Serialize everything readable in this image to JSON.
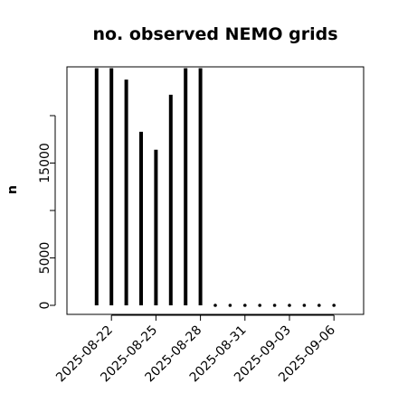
{
  "chart_data": {
    "type": "bar",
    "title": "no. observed NEMO grids",
    "xlabel": "",
    "ylabel": "n",
    "ylim": [
      0,
      24500
    ],
    "y_ticks": [
      0,
      5000,
      10000,
      15000,
      20000
    ],
    "y_tick_labels": [
      "0",
      "5000",
      "",
      "15000",
      ""
    ],
    "x_range": [
      "2025-08-19",
      "2025-09-08"
    ],
    "x_ticks": [
      "2025-08-22",
      "2025-08-25",
      "2025-08-28",
      "2025-08-31",
      "2025-09-03",
      "2025-09-06"
    ],
    "x_tick_labels": [
      "2025-08-22",
      "2025-08-25",
      "2025-08-28",
      "2025-08-31",
      "2025-09-03",
      "2025-09-06"
    ],
    "grid": false,
    "legend": "none",
    "bar_color": "#000000",
    "dates": [
      "2025-08-21",
      "2025-08-22",
      "2025-08-23",
      "2025-08-24",
      "2025-08-25",
      "2025-08-26",
      "2025-08-27",
      "2025-08-28",
      "2025-08-29",
      "2025-08-30",
      "2025-08-31",
      "2025-09-01",
      "2025-09-02",
      "2025-09-03",
      "2025-09-04",
      "2025-09-05",
      "2025-09-06"
    ],
    "values": [
      25000,
      25000,
      23800,
      18300,
      16400,
      22200,
      25000,
      25000,
      0,
      0,
      0,
      0,
      0,
      0,
      0,
      0,
      0
    ]
  }
}
